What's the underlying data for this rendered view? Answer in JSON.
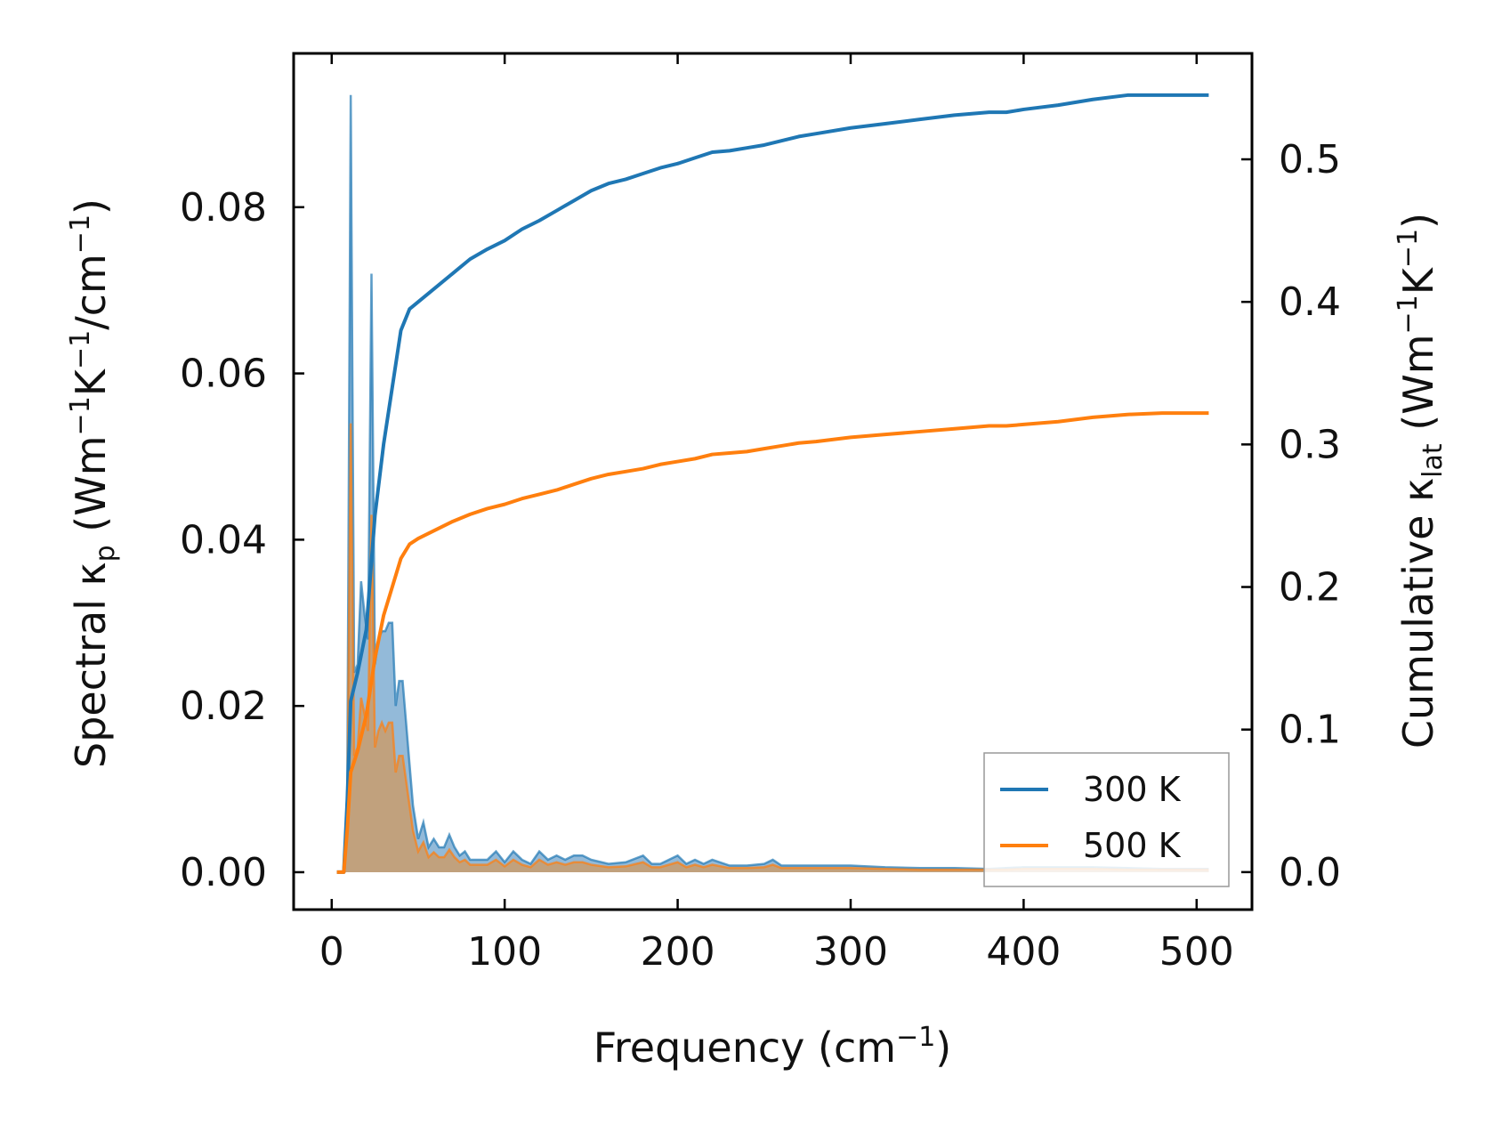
{
  "chart_data": {
    "type": "line",
    "xlabel": "Frequency (cm",
    "xlabel_sup": "−1",
    "xlabel_end": ")",
    "ylabel_left": {
      "p1": "Spectral κ",
      "sub": "p",
      "p2": " (Wm",
      "sup1": "−1",
      "p3": "K",
      "sup2": "−1",
      "p4": "/cm",
      "sup3": "−1",
      "p5": ")"
    },
    "ylabel_right": {
      "p1": "Cumulative κ",
      "sub": "lat",
      "p2": " (Wm",
      "sup1": "−1",
      "p3": "K",
      "sup2": "−1",
      "p4": ")"
    },
    "xlim": [
      -22,
      532
    ],
    "ylim_left": [
      -0.0045,
      0.0985
    ],
    "ylim_right": [
      -0.0263,
      0.5743
    ],
    "x_ticks": [
      0,
      100,
      200,
      300,
      400,
      500
    ],
    "x_tick_labels": [
      "0",
      "100",
      "200",
      "300",
      "400",
      "500"
    ],
    "y_left_ticks": [
      0.0,
      0.02,
      0.04,
      0.06,
      0.08
    ],
    "y_left_tick_labels": [
      "0.00",
      "0.02",
      "0.04",
      "0.06",
      "0.08"
    ],
    "y_right_ticks": [
      0.0,
      0.1,
      0.2,
      0.3,
      0.4,
      0.5
    ],
    "y_right_tick_labels": [
      "0.0",
      "0.1",
      "0.2",
      "0.3",
      "0.4",
      "0.5"
    ],
    "legend": {
      "placement": "lower-right",
      "entries": [
        "300 K",
        "500 K"
      ]
    },
    "colors": {
      "s300": "#1f77b4",
      "s500": "#ff7f0e",
      "fill300": "#6fa3cc",
      "fill500": "#c99c6c"
    },
    "spectral_series": [
      {
        "name": "300 K",
        "axis": "left",
        "x": [
          3,
          7,
          9,
          11,
          13,
          15,
          17,
          19,
          21,
          23,
          25,
          27,
          29,
          31,
          33,
          35,
          37,
          39,
          41,
          43,
          45,
          47,
          50,
          53,
          56,
          59,
          62,
          65,
          68,
          71,
          74,
          77,
          80,
          85,
          90,
          95,
          100,
          105,
          110,
          115,
          120,
          125,
          130,
          135,
          140,
          145,
          150,
          160,
          170,
          180,
          185,
          190,
          200,
          205,
          210,
          215,
          220,
          230,
          240,
          250,
          255,
          260,
          270,
          280,
          300,
          320,
          340,
          360,
          380,
          390,
          400,
          420,
          440,
          460,
          480,
          500,
          507
        ],
        "y": [
          0.0,
          0.0,
          0.01,
          0.0935,
          0.024,
          0.025,
          0.035,
          0.031,
          0.028,
          0.072,
          0.025,
          0.028,
          0.029,
          0.029,
          0.03,
          0.03,
          0.02,
          0.023,
          0.023,
          0.018,
          0.013,
          0.008,
          0.004,
          0.006,
          0.003,
          0.004,
          0.003,
          0.003,
          0.0045,
          0.003,
          0.002,
          0.0025,
          0.0015,
          0.0015,
          0.0015,
          0.0025,
          0.0012,
          0.0025,
          0.0015,
          0.001,
          0.0025,
          0.0015,
          0.002,
          0.0015,
          0.002,
          0.002,
          0.0015,
          0.001,
          0.0012,
          0.002,
          0.001,
          0.001,
          0.002,
          0.001,
          0.0015,
          0.001,
          0.0015,
          0.0008,
          0.0008,
          0.001,
          0.0015,
          0.0008,
          0.0008,
          0.0008,
          0.0008,
          0.0006,
          0.0005,
          0.0005,
          0.0004,
          0.0005,
          0.0006,
          0.0006,
          0.0006,
          0.0005,
          0.0004,
          0.0004,
          0.0004
        ]
      },
      {
        "name": "500 K",
        "axis": "left",
        "x": [
          3,
          7,
          9,
          11,
          13,
          15,
          17,
          19,
          21,
          23,
          25,
          27,
          29,
          31,
          33,
          35,
          37,
          39,
          41,
          43,
          45,
          47,
          50,
          53,
          56,
          59,
          62,
          65,
          68,
          71,
          74,
          77,
          80,
          85,
          90,
          95,
          100,
          105,
          110,
          115,
          120,
          125,
          130,
          135,
          140,
          145,
          150,
          160,
          170,
          180,
          185,
          190,
          200,
          205,
          210,
          215,
          220,
          230,
          240,
          250,
          255,
          260,
          270,
          280,
          300,
          320,
          340,
          360,
          380,
          390,
          400,
          420,
          440,
          460,
          480,
          500,
          507
        ],
        "y": [
          0.0,
          0.0,
          0.006,
          0.054,
          0.014,
          0.015,
          0.021,
          0.019,
          0.017,
          0.043,
          0.015,
          0.017,
          0.018,
          0.017,
          0.018,
          0.018,
          0.012,
          0.014,
          0.014,
          0.011,
          0.008,
          0.005,
          0.0025,
          0.0036,
          0.0018,
          0.0024,
          0.0018,
          0.0018,
          0.0027,
          0.0018,
          0.0012,
          0.0015,
          0.0009,
          0.0009,
          0.0009,
          0.0015,
          0.0007,
          0.0015,
          0.0009,
          0.0006,
          0.0015,
          0.0009,
          0.0012,
          0.0009,
          0.0012,
          0.0012,
          0.0009,
          0.0006,
          0.0007,
          0.0012,
          0.0006,
          0.0006,
          0.0012,
          0.0006,
          0.0009,
          0.0006,
          0.0009,
          0.0005,
          0.0005,
          0.0006,
          0.0009,
          0.0005,
          0.0005,
          0.0005,
          0.0005,
          0.0004,
          0.0003,
          0.0003,
          0.0003,
          0.0003,
          0.0004,
          0.0004,
          0.0004,
          0.0003,
          0.0003,
          0.0003,
          0.0003
        ]
      }
    ],
    "series": [
      {
        "name": "300 K",
        "axis": "right",
        "x": [
          3,
          7,
          9,
          11,
          15,
          20,
          25,
          30,
          35,
          40,
          45,
          50,
          60,
          70,
          80,
          90,
          100,
          110,
          120,
          130,
          140,
          150,
          160,
          170,
          180,
          190,
          200,
          210,
          220,
          230,
          240,
          250,
          260,
          270,
          280,
          300,
          320,
          340,
          360,
          380,
          390,
          400,
          420,
          440,
          460,
          480,
          500,
          507
        ],
        "y": [
          0.0,
          0.0,
          0.05,
          0.12,
          0.14,
          0.17,
          0.25,
          0.3,
          0.34,
          0.38,
          0.395,
          0.4,
          0.41,
          0.42,
          0.43,
          0.437,
          0.443,
          0.451,
          0.457,
          0.464,
          0.471,
          0.478,
          0.483,
          0.486,
          0.49,
          0.494,
          0.497,
          0.501,
          0.505,
          0.506,
          0.508,
          0.51,
          0.513,
          0.516,
          0.518,
          0.522,
          0.525,
          0.528,
          0.531,
          0.533,
          0.533,
          0.535,
          0.538,
          0.542,
          0.545,
          0.545,
          0.545,
          0.545
        ]
      },
      {
        "name": "500 K",
        "axis": "right",
        "x": [
          3,
          7,
          9,
          11,
          15,
          20,
          25,
          30,
          35,
          40,
          45,
          50,
          60,
          70,
          80,
          90,
          100,
          110,
          120,
          130,
          140,
          150,
          160,
          170,
          180,
          190,
          200,
          210,
          220,
          230,
          240,
          250,
          260,
          270,
          280,
          300,
          320,
          340,
          360,
          380,
          390,
          400,
          420,
          440,
          460,
          480,
          500,
          507
        ],
        "y": [
          0.0,
          0.0,
          0.03,
          0.07,
          0.085,
          0.11,
          0.15,
          0.18,
          0.2,
          0.22,
          0.23,
          0.234,
          0.24,
          0.246,
          0.251,
          0.255,
          0.258,
          0.262,
          0.265,
          0.268,
          0.272,
          0.276,
          0.279,
          0.281,
          0.283,
          0.286,
          0.288,
          0.29,
          0.293,
          0.294,
          0.295,
          0.297,
          0.299,
          0.301,
          0.302,
          0.305,
          0.307,
          0.309,
          0.311,
          0.313,
          0.313,
          0.314,
          0.316,
          0.319,
          0.321,
          0.322,
          0.322,
          0.322
        ]
      }
    ]
  }
}
